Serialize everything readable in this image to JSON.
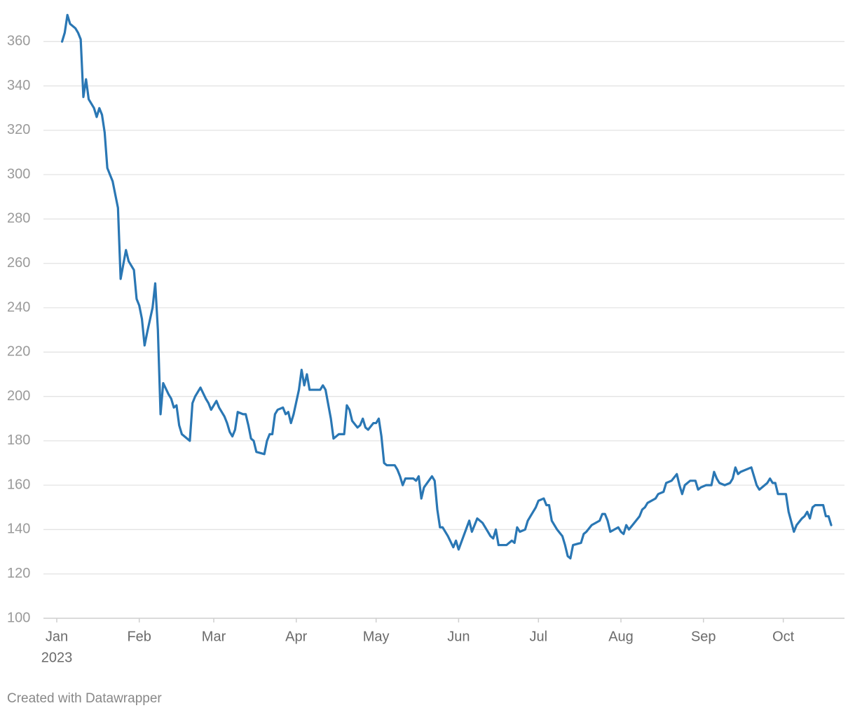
{
  "chart_data": {
    "type": "line",
    "x": [
      3,
      4,
      5,
      6,
      8,
      9,
      10,
      11,
      12,
      13,
      15,
      16,
      17,
      18,
      19,
      20,
      22,
      23,
      24,
      25,
      27,
      28,
      30,
      31,
      32,
      33,
      34,
      35,
      37,
      38,
      39,
      40,
      41,
      43,
      44,
      45,
      46,
      47,
      48,
      51,
      52,
      53,
      55,
      57,
      58,
      59,
      61,
      62,
      64,
      65,
      66,
      67,
      68,
      69,
      71,
      72,
      73,
      74,
      75,
      76,
      79,
      80,
      81,
      82,
      83,
      84,
      86,
      87,
      88,
      89,
      90,
      92,
      93,
      94,
      95,
      96,
      100,
      101,
      102,
      104,
      105,
      107,
      109,
      110,
      111,
      112,
      114,
      115,
      116,
      117,
      118,
      120,
      121,
      122,
      123,
      124,
      125,
      128,
      129,
      130,
      131,
      132,
      135,
      136,
      137,
      138,
      139,
      142,
      143,
      144,
      145,
      146,
      148,
      150,
      151,
      152,
      156,
      157,
      159,
      161,
      163,
      164,
      165,
      166,
      167,
      170,
      172,
      173,
      174,
      175,
      177,
      178,
      179,
      181,
      182,
      184,
      185,
      186,
      187,
      189,
      191,
      192,
      193,
      194,
      195,
      198,
      199,
      200,
      202,
      205,
      206,
      207,
      208,
      209,
      212,
      213,
      214,
      215,
      216,
      218,
      220,
      221,
      222,
      223,
      226,
      227,
      229,
      230,
      232,
      234,
      235,
      236,
      237,
      239,
      241,
      242,
      243,
      245,
      247,
      248,
      249,
      250,
      252,
      254,
      255,
      256,
      257,
      258,
      262,
      263,
      264,
      265,
      268,
      269,
      270,
      271,
      272,
      275,
      276,
      278,
      279,
      281,
      282,
      283,
      284,
      285,
      286,
      289,
      290,
      291,
      292
    ],
    "values": [
      360,
      364,
      372,
      368,
      366,
      364,
      361,
      335,
      343,
      334,
      330,
      326,
      330,
      327,
      319,
      303,
      297,
      291,
      285,
      253,
      266,
      261,
      257,
      244,
      241,
      235,
      223,
      229,
      240,
      251,
      230,
      192,
      206,
      201,
      199,
      195,
      196,
      187,
      183,
      180,
      197,
      200,
      204,
      199,
      197,
      194,
      198,
      195,
      191,
      188,
      184,
      182,
      185,
      193,
      192,
      192,
      187,
      181,
      180,
      175,
      174,
      180,
      183,
      183,
      192,
      194,
      195,
      192,
      193,
      188,
      192,
      203,
      212,
      205,
      210,
      203,
      203,
      205,
      203,
      190,
      181,
      183,
      183,
      196,
      194,
      189,
      186,
      187,
      190,
      186,
      185,
      188,
      188,
      190,
      182,
      170,
      169,
      169,
      167,
      164,
      160,
      163,
      163,
      162,
      164,
      154,
      159,
      164,
      162,
      149,
      141,
      141,
      137,
      132,
      135,
      131,
      144,
      139,
      145,
      143,
      139,
      137,
      136,
      140,
      133,
      133,
      135,
      134,
      141,
      139,
      140,
      144,
      146,
      150,
      153,
      154,
      151,
      151,
      144,
      140,
      137,
      133,
      128,
      127,
      133,
      134,
      138,
      139,
      142,
      144,
      147,
      147,
      144,
      139,
      141,
      139,
      138,
      142,
      140,
      143,
      146,
      149,
      150,
      152,
      154,
      156,
      157,
      161,
      162,
      165,
      160,
      156,
      160,
      162,
      162,
      158,
      159,
      160,
      160,
      166,
      163,
      161,
      160,
      161,
      163,
      168,
      165,
      166,
      168,
      164,
      160,
      158,
      161,
      163,
      161,
      161,
      156,
      156,
      148,
      139,
      142,
      145,
      146,
      148,
      145,
      150,
      151,
      151,
      146,
      146,
      142
    ],
    "color": "#2a77b4",
    "xlim": [
      -4,
      297
    ],
    "xticks": [
      {
        "value": 1,
        "label": "Jan"
      },
      {
        "value": 32,
        "label": "Feb"
      },
      {
        "value": 60,
        "label": "Mar"
      },
      {
        "value": 91,
        "label": "Apr"
      },
      {
        "value": 121,
        "label": "May"
      },
      {
        "value": 152,
        "label": "Jun"
      },
      {
        "value": 182,
        "label": "Jul"
      },
      {
        "value": 213,
        "label": "Aug"
      },
      {
        "value": 244,
        "label": "Sep"
      },
      {
        "value": 274,
        "label": "Oct"
      }
    ],
    "year_label": "2023",
    "ylim": [
      100,
      374
    ],
    "yticks": [
      100,
      120,
      140,
      160,
      180,
      200,
      220,
      240,
      260,
      280,
      300,
      320,
      340,
      360
    ],
    "grid": true,
    "footer": "Created with Datawrapper"
  }
}
